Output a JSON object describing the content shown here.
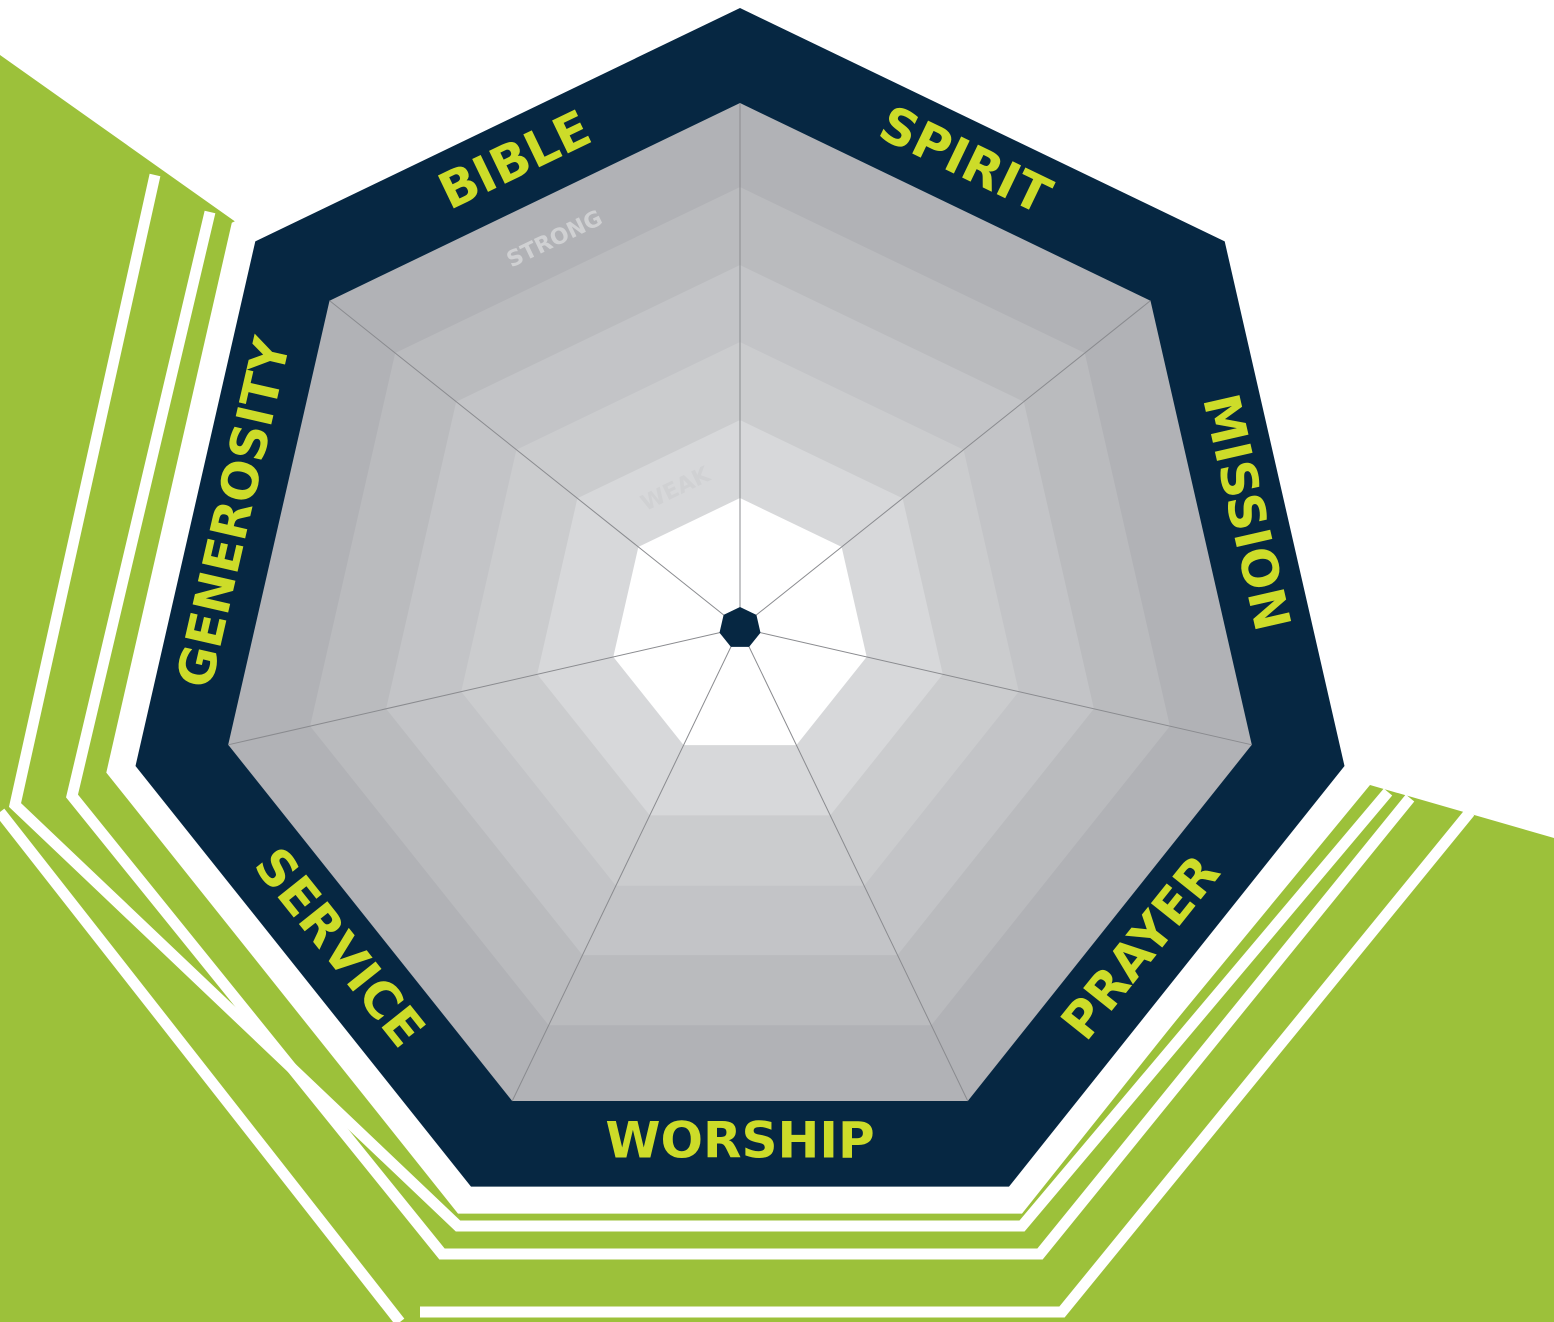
{
  "axes": [
    "SPIRIT",
    "MISSION",
    "PRAYER",
    "WORSHIP",
    "SERVICE",
    "GENEROSITY",
    "BIBLE"
  ],
  "scale": {
    "strong": "STRONG",
    "weak": "WEAK"
  }
}
